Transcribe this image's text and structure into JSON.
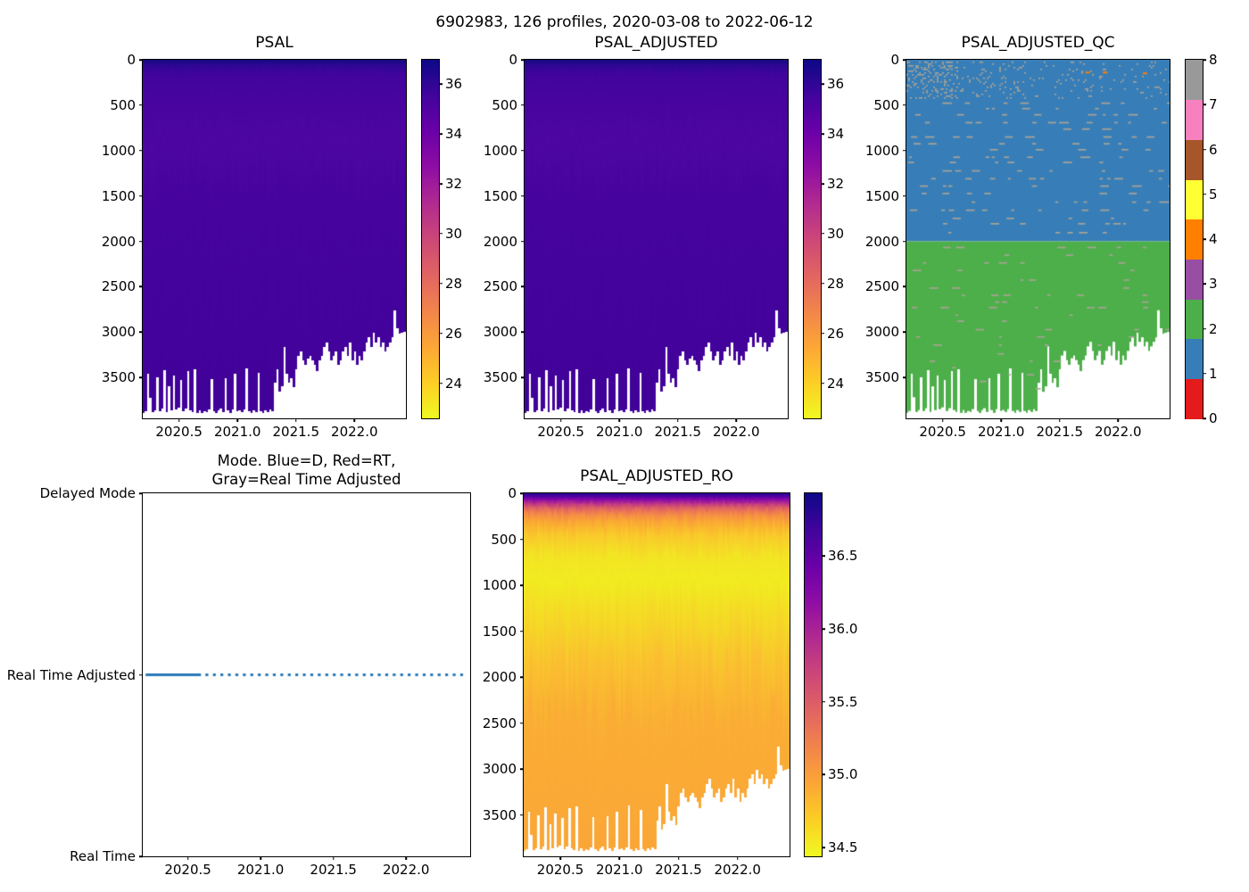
{
  "figure_title": "6902983, 126 profiles, 2020-03-08 to 2022-06-12",
  "profile_depths": {
    "x_start": 2020.21,
    "x_end": 2022.43,
    "values": [
      3890,
      3870,
      3460,
      3720,
      3880,
      3860,
      3500,
      3870,
      3840,
      3420,
      3880,
      3600,
      3860,
      3480,
      3850,
      3830,
      3530,
      3870,
      3840,
      3430,
      3860,
      3880,
      3410,
      3890,
      3860,
      3890,
      3870,
      3880,
      3850,
      3520,
      3870,
      3890,
      3860,
      3840,
      3880,
      3510,
      3860,
      3890,
      3850,
      3460,
      3870,
      3860,
      3880,
      3850,
      3400,
      3870,
      3890,
      3860,
      3880,
      3450,
      3870,
      3890,
      3860,
      3880,
      3850,
      3870,
      3560,
      3410,
      3660,
      3600,
      3160,
      3460,
      3560,
      3510,
      3610,
      3410,
      3260,
      3210,
      3310,
      3360,
      3290,
      3260,
      3310,
      3360,
      3430,
      3310,
      3260,
      3160,
      3110,
      3210,
      3310,
      3260,
      3210,
      3360,
      3310,
      3210,
      3160,
      3260,
      3110,
      3310,
      3210,
      3360,
      3260,
      3310,
      3210,
      3110,
      3060,
      3160,
      3010,
      3110,
      3060,
      3160,
      3110,
      3210,
      3160,
      3110,
      3060,
      2760,
      2960,
      3020,
      3010,
      3000
    ]
  },
  "chart_data": [
    {
      "id": "psal",
      "type": "heatmap",
      "title": "PSAL",
      "xlim": [
        2020.19,
        2022.44
      ],
      "xticks": [
        2020.5,
        2021.0,
        2021.5,
        2022.0
      ],
      "xtick_labels": [
        "2020.5",
        "2021.0",
        "2021.5",
        "2022.0"
      ],
      "depth_max": 3950,
      "depth_ticks": [
        0,
        500,
        1000,
        1500,
        2000,
        2500,
        3000,
        3500
      ],
      "depth_tick_labels": [
        "0",
        "500",
        "1000",
        "1500",
        "2000",
        "2500",
        "3000",
        "3500"
      ],
      "seed": 11,
      "jitter": 0.3,
      "depth_stops": [
        [
          0,
          "#1a0a80"
        ],
        [
          14,
          "#190983"
        ],
        [
          55,
          "#2d0793"
        ],
        [
          160,
          "#41049d"
        ],
        [
          420,
          "#48049f"
        ],
        [
          900,
          "#4d06a2"
        ],
        [
          1600,
          "#47039e"
        ],
        [
          2600,
          "#44039c"
        ],
        [
          3950,
          "#41029a"
        ]
      ],
      "colorbar": {
        "vmin": 22.6,
        "vmax": 36.97,
        "ticks": [
          36,
          34,
          32,
          30,
          28,
          26,
          24
        ],
        "tick_labels": [
          "36",
          "34",
          "32",
          "30",
          "28",
          "26",
          "24"
        ],
        "gradient": [
          "#0d0887",
          "#41049d",
          "#6a00a8",
          "#8f0da4",
          "#b12a90",
          "#cc4778",
          "#e16462",
          "#f2844b",
          "#fca636",
          "#fcce25",
          "#f0f921"
        ]
      }
    },
    {
      "id": "psal_adjusted",
      "type": "heatmap",
      "title": "PSAL_ADJUSTED",
      "xlim": [
        2020.19,
        2022.44
      ],
      "xticks": [
        2020.5,
        2021.0,
        2021.5,
        2022.0
      ],
      "xtick_labels": [
        "2020.5",
        "2021.0",
        "2021.5",
        "2022.0"
      ],
      "depth_max": 3950,
      "depth_ticks": [
        0,
        500,
        1000,
        1500,
        2000,
        2500,
        3000,
        3500
      ],
      "depth_tick_labels": [
        "0",
        "500",
        "1000",
        "1500",
        "2000",
        "2500",
        "3000",
        "3500"
      ],
      "seed": 12,
      "jitter": 0.3,
      "depth_stops": [
        [
          0,
          "#1a0a80"
        ],
        [
          14,
          "#190983"
        ],
        [
          55,
          "#2d0793"
        ],
        [
          160,
          "#41049d"
        ],
        [
          420,
          "#48049f"
        ],
        [
          900,
          "#4d06a2"
        ],
        [
          1600,
          "#47039e"
        ],
        [
          2600,
          "#44039c"
        ],
        [
          3950,
          "#41029a"
        ]
      ],
      "colorbar": {
        "vmin": 22.6,
        "vmax": 36.97,
        "ticks": [
          36,
          34,
          32,
          30,
          28,
          26,
          24
        ],
        "tick_labels": [
          "36",
          "34",
          "32",
          "30",
          "28",
          "26",
          "24"
        ],
        "gradient": [
          "#0d0887",
          "#41049d",
          "#6a00a8",
          "#8f0da4",
          "#b12a90",
          "#cc4778",
          "#e16462",
          "#f2844b",
          "#fca636",
          "#fcce25",
          "#f0f921"
        ]
      }
    },
    {
      "id": "qc",
      "type": "qc_heatmap",
      "title": "PSAL_ADJUSTED_QC",
      "xlim": [
        2020.19,
        2022.44
      ],
      "xticks": [
        2020.5,
        2021.0,
        2021.5,
        2022.0
      ],
      "xtick_labels": [
        "2020.5",
        "2021.0",
        "2021.5",
        "2022.0"
      ],
      "depth_max": 3950,
      "depth_ticks": [
        0,
        500,
        1000,
        1500,
        2000,
        2500,
        3000,
        3500
      ],
      "depth_tick_labels": [
        "0",
        "500",
        "1000",
        "1500",
        "2000",
        "2500",
        "3000",
        "3500"
      ],
      "flag_colors": [
        "#e41a1c",
        "#377eb8",
        "#4daf4a",
        "#984ea3",
        "#ff7f00",
        "#ffff33",
        "#a65628",
        "#f781bf",
        "#999999"
      ],
      "regions": [
        {
          "flag": 1,
          "depth_from": 0,
          "depth_to": 2000
        },
        {
          "flag": 2,
          "depth_from": 2000,
          "depth_to": "profile_bottom"
        }
      ],
      "speckle_flag": 8,
      "speckle_color": "#aaa396",
      "orange_marks": [
        [
          2021.72,
          130
        ],
        [
          2021.87,
          130
        ],
        [
          2022.21,
          140
        ]
      ],
      "colorbar": {
        "vmin": 0,
        "vmax": 8,
        "ticks": [
          0,
          1,
          2,
          3,
          4,
          5,
          6,
          7,
          8
        ],
        "tick_labels": [
          "0",
          "1",
          "2",
          "3",
          "4",
          "5",
          "6",
          "7",
          "8"
        ],
        "segments": [
          "#e41a1c",
          "#377eb8",
          "#4daf4a",
          "#984ea3",
          "#ff7f00",
          "#ffff33",
          "#a65628",
          "#f781bf",
          "#999999"
        ]
      }
    },
    {
      "id": "mode",
      "type": "line",
      "title": "Mode. Blue=D, Red=RT,\nGray=Real Time Adjusted",
      "xlim": [
        2020.19,
        2022.44
      ],
      "xticks": [
        2020.5,
        2021.0,
        2021.5,
        2022.0
      ],
      "xtick_labels": [
        "2020.5",
        "2021.0",
        "2021.5",
        "2022.0"
      ],
      "y_categories": [
        "Delayed Mode",
        "Real Time Adjusted",
        "Real Time"
      ],
      "line": {
        "color": "#2878b8",
        "y_category": "Real Time Adjusted",
        "x_start": 2020.21,
        "solid_until": 2020.59,
        "x_end": 2022.42,
        "thickness": 3,
        "dot_width": 3.2,
        "dot_gap": 8.4
      }
    },
    {
      "id": "ro",
      "type": "heatmap",
      "title": "PSAL_ADJUSTED_RO",
      "xlim": [
        2020.19,
        2022.44
      ],
      "xticks": [
        2020.5,
        2021.0,
        2021.5,
        2022.0
      ],
      "xtick_labels": [
        "2020.5",
        "2021.0",
        "2021.5",
        "2022.0"
      ],
      "depth_max": 3950,
      "depth_ticks": [
        0,
        500,
        1000,
        1500,
        2000,
        2500,
        3000,
        3500
      ],
      "depth_tick_labels": [
        "0",
        "500",
        "1000",
        "1500",
        "2000",
        "2500",
        "3000",
        "3500"
      ],
      "seed": 13,
      "jitter": 0.18,
      "depth_stops": [
        [
          0,
          "#2d0594"
        ],
        [
          30,
          "#47039e"
        ],
        [
          60,
          "#7e03a8"
        ],
        [
          95,
          "#a62198"
        ],
        [
          130,
          "#ca4679"
        ],
        [
          175,
          "#e56a5d"
        ],
        [
          235,
          "#f58c46"
        ],
        [
          320,
          "#fbaa33"
        ],
        [
          460,
          "#f9ca2b"
        ],
        [
          700,
          "#f3e524"
        ],
        [
          950,
          "#f1ec20"
        ],
        [
          1400,
          "#f6d727"
        ],
        [
          1900,
          "#fabf30"
        ],
        [
          2500,
          "#fbad34"
        ],
        [
          3950,
          "#faa638"
        ]
      ],
      "colorbar": {
        "vmin": 34.44,
        "vmax": 36.93,
        "ticks": [
          36.5,
          36.0,
          35.5,
          35.0,
          34.5
        ],
        "tick_labels": [
          "36.5",
          "36.0",
          "35.5",
          "35.0",
          "34.5"
        ],
        "gradient": [
          "#0d0887",
          "#41049d",
          "#6a00a8",
          "#8f0da4",
          "#b12a90",
          "#cc4778",
          "#e16462",
          "#f2844b",
          "#fca636",
          "#fcce25",
          "#f0f921"
        ]
      }
    }
  ]
}
